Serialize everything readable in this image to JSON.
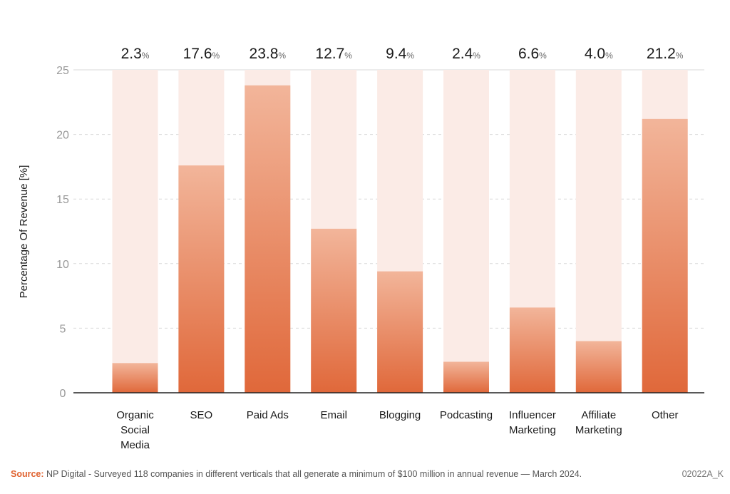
{
  "chart_data": {
    "type": "bar",
    "categories": [
      "Organic Social Media",
      "SEO",
      "Paid Ads",
      "Email",
      "Blogging",
      "Podcasting",
      "Influencer Marketing",
      "Affiliate Marketing",
      "Other"
    ],
    "category_lines": [
      [
        "Organic",
        "Social",
        "Media"
      ],
      [
        "SEO"
      ],
      [
        "Paid Ads"
      ],
      [
        "Email"
      ],
      [
        "Blogging"
      ],
      [
        "Podcasting"
      ],
      [
        "Influencer",
        "Marketing"
      ],
      [
        "Affiliate",
        "Marketing"
      ],
      [
        "Other"
      ]
    ],
    "values": [
      2.3,
      17.6,
      23.8,
      12.7,
      9.4,
      2.4,
      6.6,
      4.0,
      21.2
    ],
    "value_labels": [
      "2.3",
      "17.6",
      "23.8",
      "12.7",
      "9.4",
      "2.4",
      "6.6",
      "4.0",
      "21.2"
    ],
    "value_suffix": "%",
    "ylabel": "Percentage Of Revenue [%]",
    "xlabel": "",
    "ylim": [
      0,
      25
    ],
    "yticks": [
      0,
      5,
      10,
      15,
      20,
      25
    ],
    "grid": true,
    "colors": {
      "bar_top": "#f2b59a",
      "bar_bottom": "#e0683a",
      "bar_background": "#fbebe6",
      "grid": "#d9d9d9",
      "axis": "#222222"
    }
  },
  "footer": {
    "source_label": "Source:",
    "source_text": "NP Digital - Surveyed 118 companies in different verticals that all generate a minimum of $100 million in annual revenue — March 2024.",
    "code": "02022A_K"
  }
}
